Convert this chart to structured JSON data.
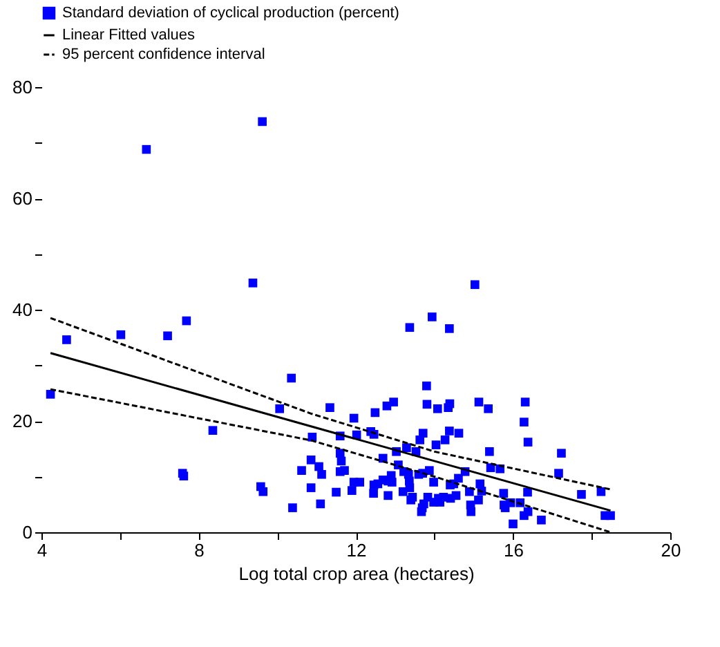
{
  "chart_data": {
    "type": "scatter",
    "xlabel": "Log total crop area (hectares)",
    "legend": "top",
    "xlim": [
      4,
      20
    ],
    "xticks": [
      4,
      {
        "value": 6,
        "label": null
      },
      8,
      {
        "value": 10,
        "label": null
      },
      12,
      {
        "value": 14,
        "label": null
      },
      16,
      {
        "value": 18,
        "label": null
      },
      20
    ],
    "ylim": [
      0,
      80
    ],
    "yticks": [
      0,
      {
        "value": 10,
        "label": null
      },
      20,
      {
        "value": 30,
        "label": null
      },
      40,
      {
        "value": 50,
        "label": null
      },
      60,
      {
        "value": 70,
        "label": null
      },
      80
    ],
    "series": [
      {
        "name": "Standard deviation of cyclical production (percent)",
        "color": "#0000ff",
        "marker": "square",
        "x": [
          4.23,
          4.64,
          6.02,
          6.67,
          7.21,
          7.69,
          9.38,
          9.62,
          10.36,
          10.06,
          8.36,
          7.59,
          7.62,
          11.34,
          11.95,
          12.02,
          10.89,
          11.6,
          11.6,
          11.63,
          10.86,
          11.06,
          11.13,
          10.62,
          11.6,
          11.71,
          9.58,
          9.64,
          10.86,
          11.5,
          11.9,
          11.95,
          12.1,
          10.39,
          11.1,
          15.03,
          13.94,
          13.37,
          14.38,
          13.8,
          12.49,
          12.79,
          12.96,
          13.81,
          14.08,
          14.35,
          14.39,
          15.13,
          15.37,
          16.31,
          16.28,
          16.38,
          17.23,
          17.16,
          17.74,
          18.24,
          18.34,
          18.48,
          16.72,
          16.0,
          16.28,
          16.38,
          15.4,
          15.43,
          15.67,
          16.37,
          15.76,
          16.18,
          15.77,
          15.8,
          15.94,
          14.92,
          14.93,
          15.12,
          15.16,
          15.2,
          14.89,
          14.78,
          14.61,
          14.62,
          14.38,
          14.27,
          14.04,
          13.71,
          13.63,
          13.53,
          13.29,
          13.03,
          12.38,
          12.46,
          12.69,
          13.08,
          13.22,
          13.34,
          13.6,
          13.7,
          13.87,
          12.9,
          12.69,
          12.56,
          12.46,
          12.82,
          12.92,
          13.36,
          13.37,
          13.98,
          14.4,
          14.49,
          12.45,
          12.82,
          13.2,
          13.44,
          13.4,
          13.83,
          14.1,
          14.14,
          14.23,
          13.98,
          14.41,
          14.55,
          13.73,
          13.69,
          13.67
        ],
        "values": [
          24.8,
          34.6,
          35.5,
          68.8,
          35.3,
          38.0,
          44.8,
          73.8,
          27.7,
          22.2,
          18.3,
          10.6,
          10.1,
          22.4,
          20.5,
          17.5,
          17.1,
          17.3,
          14.2,
          12.8,
          13.0,
          11.8,
          10.4,
          11.1,
          10.9,
          11.1,
          8.2,
          7.3,
          8.0,
          7.2,
          7.5,
          9.0,
          9.0,
          4.4,
          5.1,
          44.5,
          38.7,
          36.8,
          36.6,
          26.3,
          21.5,
          22.7,
          23.4,
          23.0,
          22.2,
          22.4,
          23.1,
          23.4,
          22.2,
          23.4,
          19.8,
          16.2,
          14.2,
          10.6,
          6.8,
          7.3,
          3.0,
          3.0,
          2.2,
          1.5,
          3.0,
          3.7,
          14.5,
          11.6,
          11.4,
          7.2,
          7.0,
          5.3,
          4.9,
          4.4,
          5.3,
          4.9,
          3.7,
          5.8,
          8.7,
          7.4,
          7.3,
          10.9,
          9.7,
          17.8,
          18.2,
          16.6,
          15.7,
          17.8,
          16.6,
          14.5,
          15.2,
          14.5,
          18.1,
          17.6,
          13.3,
          12.1,
          10.9,
          10.4,
          10.4,
          10.6,
          11.1,
          10.2,
          9.4,
          8.7,
          8.5,
          9.2,
          9.0,
          9.2,
          8.0,
          9.0,
          8.5,
          8.7,
          7.0,
          6.6,
          7.3,
          6.3,
          5.8,
          6.3,
          6.1,
          5.4,
          6.3,
          5.4,
          6.1,
          6.6,
          5.1,
          4.4,
          3.7
        ]
      },
      {
        "name": "Linear Fitted values",
        "type": "line",
        "color": "#000000",
        "line_style": "solid",
        "x": [
          4.23,
          18.48
        ],
        "values": [
          32.2,
          3.9
        ]
      },
      {
        "name": "95 percent confidence interval",
        "type": "line",
        "color": "#000000",
        "line_style": "dashed",
        "x": [
          4.23,
          10.87,
          14,
          18.48
        ],
        "values": [
          38.5,
          21.3,
          14.5,
          7.7
        ]
      },
      {
        "type": "line",
        "color": "#000000",
        "line_style": "dashed",
        "x": [
          4.23,
          10.87,
          14,
          18.48
        ],
        "values": [
          25.7,
          16.5,
          10.0,
          0
        ]
      }
    ]
  }
}
